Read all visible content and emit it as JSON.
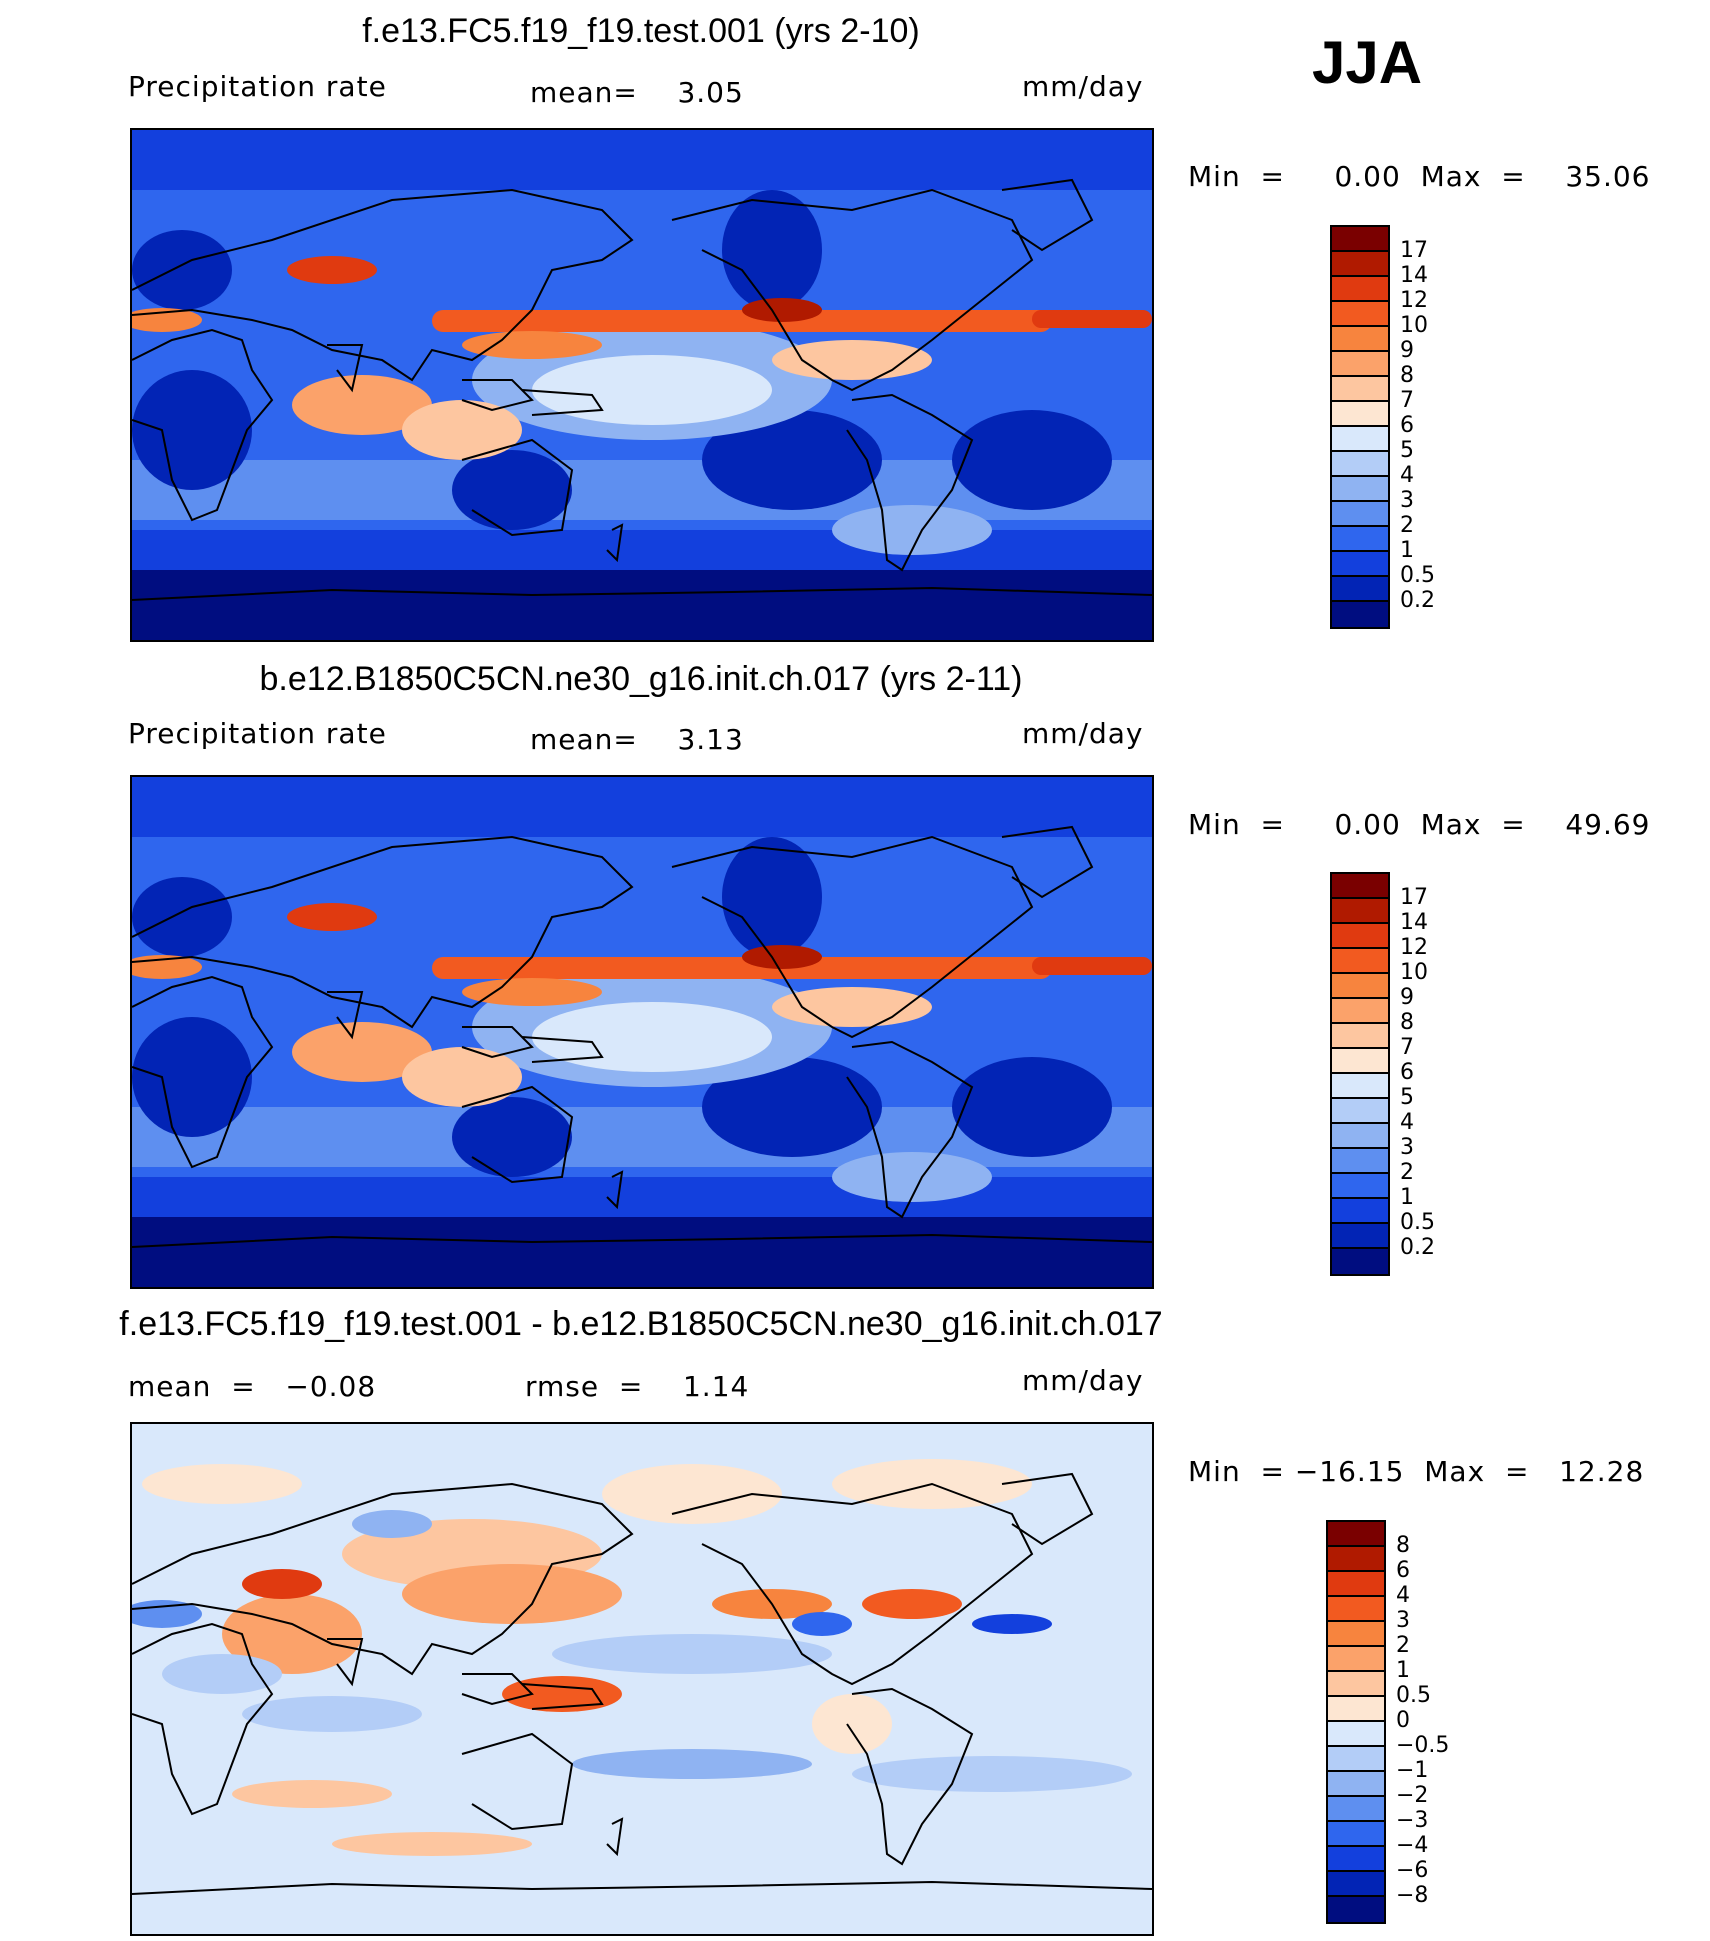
{
  "season": "JJA",
  "panels": [
    {
      "title": "f.e13.FC5.f19_f19.test.001 (yrs 2-10)",
      "left_label": "Precipitation  rate",
      "center_label": "mean=    3.05",
      "units": "mm/day",
      "minmax": "Min  =     0.00  Max  =    35.06"
    },
    {
      "title": "b.e12.B1850C5CN.ne30_g16.init.ch.017 (yrs 2-11)",
      "left_label": "Precipitation  rate",
      "center_label": "mean=    3.13",
      "units": "mm/day",
      "minmax": "Min  =     0.00  Max  =    49.69"
    },
    {
      "title": "f.e13.FC5.f19_f19.test.001 - b.e12.B1850C5CN.ne30_g16.init.ch.017",
      "left_label": "mean  =   −0.08",
      "center_label": "rmse  =    1.14",
      "units": "mm/day",
      "minmax": "Min  = −16.15  Max  =   12.28"
    }
  ],
  "chart_data": [
    {
      "type": "heatmap",
      "title": "f.e13.FC5.f19_f19.test.001 (yrs 2-10)",
      "variable": "Precipitation  rate",
      "units": "mm/day",
      "mean": 3.05,
      "min": 0.0,
      "max": 35.06,
      "colorbar_levels": [
        "17",
        "14",
        "12",
        "10",
        "9",
        "8",
        "7",
        "6",
        "5",
        "4",
        "3",
        "2",
        "1",
        "0.5",
        "0.2"
      ],
      "colorbar_colors": [
        "#7a0000",
        "#b01a00",
        "#e03a10",
        "#f25a20",
        "#f7843e",
        "#fba26a",
        "#fdc6a0",
        "#fde6d2",
        "#d9e8fb",
        "#b3cdf7",
        "#8fb3f2",
        "#5e8ff0",
        "#2f66ee",
        "#1340dd",
        "#0224b5",
        "#000d80"
      ]
    },
    {
      "type": "heatmap",
      "title": "b.e12.B1850C5CN.ne30_g16.init.ch.017 (yrs 2-11)",
      "variable": "Precipitation  rate",
      "units": "mm/day",
      "mean": 3.13,
      "min": 0.0,
      "max": 49.69,
      "colorbar_levels": [
        "17",
        "14",
        "12",
        "10",
        "9",
        "8",
        "7",
        "6",
        "5",
        "4",
        "3",
        "2",
        "1",
        "0.5",
        "0.2"
      ],
      "colorbar_colors": [
        "#7a0000",
        "#b01a00",
        "#e03a10",
        "#f25a20",
        "#f7843e",
        "#fba26a",
        "#fdc6a0",
        "#fde6d2",
        "#d9e8fb",
        "#b3cdf7",
        "#8fb3f2",
        "#5e8ff0",
        "#2f66ee",
        "#1340dd",
        "#0224b5",
        "#000d80"
      ]
    },
    {
      "type": "heatmap",
      "title": "f.e13.FC5.f19_f19.test.001 - b.e12.B1850C5CN.ne30_g16.init.ch.017",
      "units": "mm/day",
      "mean": -0.08,
      "rmse": 1.14,
      "min": -16.15,
      "max": 12.28,
      "colorbar_levels": [
        "8",
        "6",
        "4",
        "3",
        "2",
        "1",
        "0.5",
        "0",
        "−0.5",
        "−1",
        "−2",
        "−3",
        "−4",
        "−6",
        "−8"
      ],
      "colorbar_colors": [
        "#7a0000",
        "#b01a00",
        "#e03a10",
        "#f25a20",
        "#f7843e",
        "#fba26a",
        "#fdc6a0",
        "#fde6d2",
        "#d9e8fb",
        "#b3cdf7",
        "#8fb3f2",
        "#5e8ff0",
        "#2f66ee",
        "#1340dd",
        "#0224b5",
        "#000d80"
      ]
    }
  ]
}
